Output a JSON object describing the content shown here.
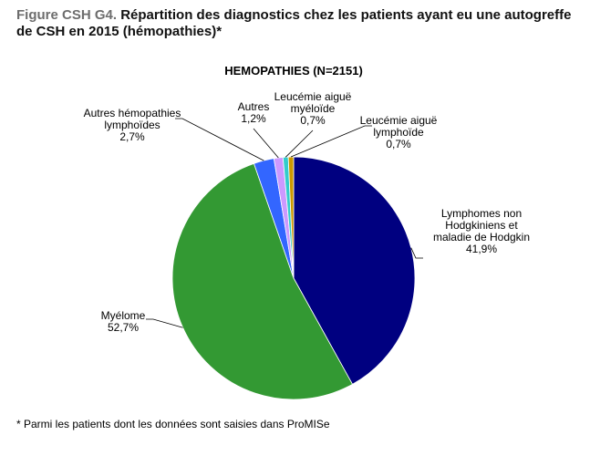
{
  "figure": {
    "prefix": "Figure CSH G4.",
    "text": " Répartition des diagnostics chez les patients ayant eu une autogreffe de CSH en 2015 (hémopathies)*"
  },
  "chart_data": {
    "type": "pie",
    "title": "HEMOPATHIES (N=2151)",
    "start_angle_deg": 0,
    "direction": "clockwise",
    "slices": [
      {
        "label": [
          "Lymphomes non",
          "Hodgkiniens et",
          "maladie de Hodgkin"
        ],
        "value": 41.9,
        "value_label": "41,9%",
        "color": "#000080"
      },
      {
        "label": [
          "Myélome"
        ],
        "value": 52.7,
        "value_label": "52,7%",
        "color": "#339933"
      },
      {
        "label": [
          "Autres hémopathies",
          "lymphoïdes"
        ],
        "value": 2.7,
        "value_label": "2,7%",
        "color": "#3366ff"
      },
      {
        "label": [
          "Autres"
        ],
        "value": 1.2,
        "value_label": "1,2%",
        "color": "#cc99ff"
      },
      {
        "label": [
          "Leucémie aiguë",
          "myéloïde"
        ],
        "value": 0.7,
        "value_label": "0,7%",
        "color": "#33cccc"
      },
      {
        "label": [
          "Leucémie aiguë",
          "lymphoïde"
        ],
        "value": 0.7,
        "value_label": "0,7%",
        "color": "#cc9900"
      }
    ]
  },
  "footnote": "* Parmi les patients dont les données sont saisies dans ProMISe"
}
